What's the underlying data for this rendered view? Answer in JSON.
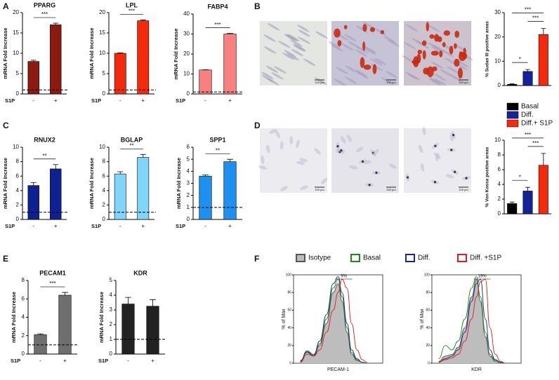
{
  "panel_labels": [
    "A",
    "B",
    "C",
    "D",
    "E",
    "F"
  ],
  "micrographs": [
    {
      "scale_bar": "100 µm"
    },
    {
      "scale_bar": "100 µm"
    },
    {
      "scale_bar": "100 µm"
    },
    {
      "scale_bar": "100 µm"
    },
    {
      "scale_bar": "100 µm"
    },
    {
      "scale_bar": "100 µm"
    }
  ],
  "chart_data": [
    {
      "type": "bar",
      "title": "PPARG",
      "y_label": "mRNA Fold Increase",
      "x_label": "S1P",
      "categories": [
        "-",
        "+"
      ],
      "values": [
        8.0,
        17.0
      ],
      "errors": [
        0.3,
        0.4
      ],
      "color": "#8b1a10",
      "ylim": [
        0,
        20
      ],
      "yticks": [
        0,
        5,
        10,
        15,
        20
      ],
      "reference_line": 1,
      "significance": [
        "***"
      ]
    },
    {
      "type": "bar",
      "title": "LPL",
      "y_label": "mRNA Fold Increase",
      "x_label": "S1P",
      "categories": [
        "-",
        "+"
      ],
      "values": [
        10.0,
        18.0
      ],
      "errors": [
        0.1,
        0.2
      ],
      "color": "#f42a0c",
      "ylim": [
        0,
        20
      ],
      "yticks": [
        0,
        5,
        10,
        15,
        20
      ],
      "reference_line": 1,
      "significance": [
        "***"
      ]
    },
    {
      "type": "bar",
      "title": "FABP4",
      "y_label": "mRNA Fold Increase",
      "x_label": "S1P",
      "categories": [
        "-",
        "+"
      ],
      "values": [
        12.0,
        30.0
      ],
      "errors": [
        0.1,
        0.3
      ],
      "color": "#f98080",
      "ylim": [
        0,
        40
      ],
      "yticks": [
        0,
        10,
        20,
        30,
        40
      ],
      "reference_line": 1,
      "significance": [
        "***"
      ]
    },
    {
      "type": "bar",
      "y_label": "% Sudan III positive areas",
      "categories": [
        null,
        null,
        null
      ],
      "values": [
        0.5,
        5.8,
        21.0
      ],
      "errors": [
        0.2,
        0.8,
        2.5
      ],
      "colors": [
        "#000000",
        "#15239a",
        "#f42a0c"
      ],
      "ylim": [
        0,
        30
      ],
      "yticks": [
        0,
        10,
        20,
        30
      ],
      "significance": [
        "*",
        "***",
        "***"
      ],
      "legend": [
        "Basal",
        "Diff.",
        "Diff.+ S1P"
      ]
    },
    {
      "type": "bar",
      "title": "RNUX2",
      "y_label": "mRNA Fold Increase",
      "x_label": "S1P",
      "categories": [
        "-",
        "+"
      ],
      "values": [
        4.7,
        7.0
      ],
      "errors": [
        0.4,
        0.6
      ],
      "color": "#0d2192",
      "ylim": [
        0,
        10
      ],
      "yticks": [
        0,
        2,
        4,
        6,
        8,
        10
      ],
      "reference_line": 1,
      "significance": [
        "**"
      ]
    },
    {
      "type": "bar",
      "title": "BGLAP",
      "y_label": "mRNA Fold Increase",
      "x_label": "S1P",
      "categories": [
        "-",
        "+"
      ],
      "values": [
        6.3,
        8.6
      ],
      "errors": [
        0.3,
        0.4
      ],
      "color": "#80d6f8",
      "ylim": [
        0,
        10
      ],
      "yticks": [
        0,
        2,
        4,
        6,
        8,
        10
      ],
      "reference_line": 1,
      "significance": [
        "**"
      ]
    },
    {
      "type": "bar",
      "title": "SPP1",
      "y_label": "mRNA Fold Increase",
      "x_label": "S1P",
      "categories": [
        "-",
        "+"
      ],
      "values": [
        3.6,
        4.8
      ],
      "errors": [
        0.1,
        0.2
      ],
      "color": "#1e90f0",
      "ylim": [
        0,
        6
      ],
      "yticks": [
        0,
        1,
        2,
        3,
        4,
        5,
        6
      ],
      "reference_line": 1,
      "significance": [
        "**"
      ]
    },
    {
      "type": "bar",
      "y_label": "% Von Kossa positive areas",
      "categories": [
        null,
        null,
        null
      ],
      "values": [
        1.4,
        3.1,
        6.6
      ],
      "errors": [
        0.2,
        0.5,
        1.6
      ],
      "colors": [
        "#000000",
        "#15239a",
        "#f42a0c"
      ],
      "ylim": [
        0,
        10
      ],
      "yticks": [
        0,
        2,
        4,
        6,
        8,
        10
      ],
      "significance": [
        "*",
        "***",
        "***"
      ]
    },
    {
      "type": "bar",
      "title": "PECAM1",
      "y_label": "mRNA Fold Increase",
      "x_label": "S1P",
      "categories": [
        "-",
        "+"
      ],
      "values": [
        2.1,
        6.4
      ],
      "errors": [
        0.1,
        0.3
      ],
      "color": "#6f6f6f",
      "ylim": [
        0,
        8
      ],
      "yticks": [
        0,
        2,
        4,
        6,
        8
      ],
      "reference_line": 1,
      "significance": [
        "***"
      ]
    },
    {
      "type": "bar",
      "title": "KDR",
      "y_label": "mRNA Fold Increase",
      "x_label": "S1P",
      "categories": [
        "-",
        "+"
      ],
      "values": [
        3.4,
        3.25
      ],
      "errors": [
        0.45,
        0.45
      ],
      "color": "#222222",
      "ylim": [
        0,
        5
      ],
      "yticks": [
        0,
        1,
        2,
        3,
        4,
        5
      ],
      "reference_line": 1
    },
    {
      "type": "line",
      "y_label": "% of Max",
      "x_label": "PECAM-1",
      "annotation": "9%",
      "log_x": true,
      "xlim": [
        10,
        100000
      ],
      "ylim": [
        0,
        100
      ],
      "yticks": [
        0,
        20,
        40,
        60,
        80,
        100
      ],
      "x": [
        20,
        40,
        80,
        150,
        300,
        600,
        1000,
        1500,
        2500,
        4000,
        7000,
        12000,
        20000
      ],
      "series": [
        {
          "name": "Isotype",
          "color": "#555555",
          "fill": "#bdbdbd",
          "values": [
            3,
            12,
            8,
            20,
            45,
            80,
            90,
            70,
            35,
            10,
            3,
            1,
            0
          ]
        },
        {
          "name": "Basal",
          "color": "#1a8a1a",
          "values": [
            2,
            14,
            10,
            22,
            50,
            85,
            95,
            75,
            40,
            12,
            4,
            1,
            0
          ]
        },
        {
          "name": "Diff.",
          "color": "#1b2a8a",
          "values": [
            2,
            13,
            9,
            25,
            55,
            90,
            98,
            80,
            45,
            15,
            5,
            1,
            0
          ]
        },
        {
          "name": "Diff. +S1P",
          "color": "#e02020",
          "values": [
            1,
            10,
            8,
            15,
            35,
            60,
            80,
            95,
            85,
            45,
            15,
            4,
            1
          ]
        }
      ]
    },
    {
      "type": "line",
      "y_label": "% of Max",
      "x_label": "KDR",
      "annotation": "19%",
      "log_x": true,
      "xlim": [
        10,
        100000
      ],
      "ylim": [
        0,
        100
      ],
      "yticks": [
        0,
        20,
        40,
        60,
        80,
        100
      ],
      "x": [
        20,
        40,
        80,
        150,
        300,
        600,
        1000,
        1500,
        2500,
        4000,
        7000,
        12000,
        20000
      ],
      "series": [
        {
          "name": "Isotype",
          "color": "#555555",
          "fill": "#bdbdbd",
          "values": [
            2,
            8,
            10,
            18,
            40,
            75,
            95,
            70,
            30,
            8,
            2,
            0,
            0
          ]
        },
        {
          "name": "Basal",
          "color": "#1a8a1a",
          "values": [
            5,
            20,
            15,
            25,
            50,
            85,
            98,
            75,
            35,
            10,
            3,
            1,
            0
          ]
        },
        {
          "name": "Diff.",
          "color": "#1b2a8a",
          "values": [
            1,
            5,
            8,
            15,
            35,
            70,
            90,
            95,
            50,
            15,
            4,
            1,
            0
          ]
        },
        {
          "name": "Diff. +S1P",
          "color": "#e02020",
          "values": [
            1,
            4,
            6,
            10,
            25,
            50,
            75,
            92,
            95,
            40,
            10,
            2,
            0
          ]
        }
      ]
    }
  ]
}
